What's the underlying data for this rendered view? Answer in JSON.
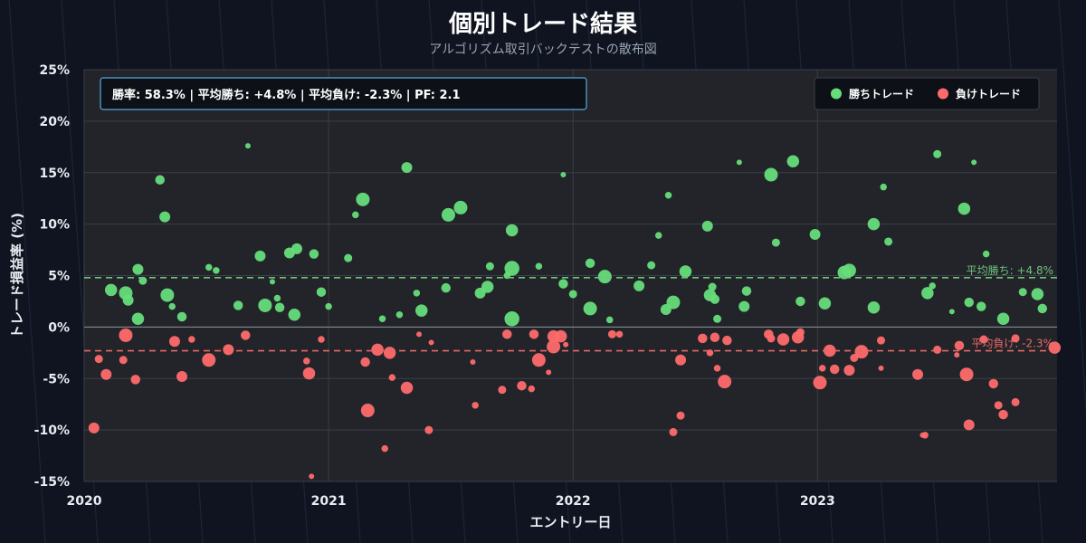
{
  "header": {
    "title": "個別トレード結果",
    "subtitle": "アルゴリズム取引バックテストの散布図"
  },
  "stats_box": "勝率: 58.3%  |  平均勝ち: +4.8%  |  平均負け: -2.3%  |  PF: 2.1",
  "colors": {
    "win": "#66dd7a",
    "loss": "#ff6b6b",
    "plot_bg": "#222429",
    "page_bg": "#0f1420",
    "stats_border": "#5aa8e0"
  },
  "chart_data": {
    "type": "scatter",
    "title": "個別トレード結果",
    "subtitle": "アルゴリズム取引バックテストの散布図",
    "xlabel": "エントリー日",
    "ylabel": "トレード損益率 (%)",
    "xlim": [
      2020.0,
      2023.98
    ],
    "ylim": [
      -15,
      25
    ],
    "x_ticks": [
      2020,
      2021,
      2022,
      2023
    ],
    "x_tick_labels": [
      "2020",
      "2021",
      "2022",
      "2023"
    ],
    "y_ticks": [
      -15,
      -10,
      -5,
      0,
      5,
      10,
      15,
      20,
      25
    ],
    "y_tick_labels": [
      "-15%",
      "-10%",
      "-5%",
      "0%",
      "5%",
      "10%",
      "15%",
      "20%",
      "25%"
    ],
    "grid": true,
    "legend_position": "top-right",
    "reference_lines": [
      {
        "label": "平均勝ち: +4.8%",
        "y": 4.8,
        "series": "wins"
      },
      {
        "label": "平均負け: -2.3%",
        "y": -2.3,
        "series": "losses"
      }
    ],
    "series": [
      {
        "name": "勝ちトレード",
        "color": "#66dd7a",
        "points": [
          [
            2020.11,
            3.6,
            9
          ],
          [
            2020.17,
            3.3,
            10
          ],
          [
            2020.18,
            2.6,
            8
          ],
          [
            2020.22,
            5.6,
            8
          ],
          [
            2020.22,
            0.8,
            9
          ],
          [
            2020.24,
            4.5,
            6
          ],
          [
            2020.31,
            14.3,
            7
          ],
          [
            2020.33,
            10.7,
            8
          ],
          [
            2020.34,
            3.1,
            10
          ],
          [
            2020.36,
            2.0,
            5
          ],
          [
            2020.4,
            1.0,
            7
          ],
          [
            2020.51,
            5.8,
            5
          ],
          [
            2020.54,
            5.5,
            5
          ],
          [
            2020.63,
            2.1,
            7
          ],
          [
            2020.67,
            17.6,
            4
          ],
          [
            2020.72,
            6.9,
            8
          ],
          [
            2020.74,
            2.1,
            10
          ],
          [
            2020.77,
            4.4,
            4
          ],
          [
            2020.79,
            2.8,
            5
          ],
          [
            2020.8,
            1.9,
            7
          ],
          [
            2020.84,
            7.2,
            8
          ],
          [
            2020.87,
            7.6,
            8
          ],
          [
            2020.86,
            1.2,
            9
          ],
          [
            2020.94,
            7.1,
            7
          ],
          [
            2020.97,
            3.4,
            7
          ],
          [
            2021.0,
            2.0,
            5
          ],
          [
            2021.08,
            6.7,
            6
          ],
          [
            2021.11,
            10.9,
            5
          ],
          [
            2021.14,
            12.4,
            10
          ],
          [
            2021.22,
            0.8,
            5
          ],
          [
            2021.29,
            1.2,
            5
          ],
          [
            2021.32,
            15.5,
            8
          ],
          [
            2021.36,
            3.3,
            5
          ],
          [
            2021.38,
            1.6,
            9
          ],
          [
            2021.49,
            10.9,
            10
          ],
          [
            2021.54,
            11.6,
            10
          ],
          [
            2021.48,
            3.8,
            7
          ],
          [
            2021.62,
            3.3,
            8
          ],
          [
            2021.65,
            3.9,
            9
          ],
          [
            2021.66,
            5.9,
            6
          ],
          [
            2021.73,
            5.0,
            5
          ],
          [
            2021.75,
            9.4,
            9
          ],
          [
            2021.75,
            5.7,
            11
          ],
          [
            2021.75,
            0.8,
            11
          ],
          [
            2021.86,
            5.9,
            5
          ],
          [
            2021.96,
            14.8,
            4
          ],
          [
            2021.96,
            4.2,
            7
          ],
          [
            2022.0,
            3.2,
            6
          ],
          [
            2022.07,
            6.2,
            7
          ],
          [
            2022.07,
            1.8,
            10
          ],
          [
            2022.13,
            4.9,
            10
          ],
          [
            2022.15,
            0.7,
            5
          ],
          [
            2022.27,
            4.0,
            8
          ],
          [
            2022.32,
            6.0,
            6
          ],
          [
            2022.35,
            8.9,
            5
          ],
          [
            2022.38,
            1.7,
            8
          ],
          [
            2022.39,
            12.8,
            5
          ],
          [
            2022.41,
            2.4,
            10
          ],
          [
            2022.46,
            5.4,
            9
          ],
          [
            2022.55,
            9.8,
            8
          ],
          [
            2022.56,
            3.1,
            9
          ],
          [
            2022.57,
            3.9,
            6
          ],
          [
            2022.58,
            2.7,
            7
          ],
          [
            2022.59,
            0.8,
            6
          ],
          [
            2022.68,
            16.0,
            4
          ],
          [
            2022.7,
            2.0,
            8
          ],
          [
            2022.71,
            3.5,
            7
          ],
          [
            2022.81,
            14.8,
            10
          ],
          [
            2022.83,
            8.2,
            6
          ],
          [
            2022.9,
            16.1,
            9
          ],
          [
            2022.93,
            2.5,
            7
          ],
          [
            2022.99,
            9.0,
            8
          ],
          [
            2023.03,
            2.3,
            9
          ],
          [
            2023.11,
            5.3,
            10
          ],
          [
            2023.13,
            5.5,
            10
          ],
          [
            2023.23,
            10.0,
            9
          ],
          [
            2023.23,
            1.9,
            9
          ],
          [
            2023.27,
            13.6,
            5
          ],
          [
            2023.29,
            8.3,
            6
          ],
          [
            2023.45,
            3.3,
            9
          ],
          [
            2023.47,
            4.0,
            5
          ],
          [
            2023.49,
            16.8,
            6
          ],
          [
            2023.55,
            1.5,
            4
          ],
          [
            2023.6,
            11.5,
            9
          ],
          [
            2023.62,
            2.4,
            7
          ],
          [
            2023.64,
            16.0,
            4
          ],
          [
            2023.67,
            2.0,
            7
          ],
          [
            2023.69,
            7.1,
            5
          ],
          [
            2023.76,
            0.8,
            9
          ],
          [
            2023.84,
            3.4,
            6
          ],
          [
            2023.9,
            3.2,
            9
          ],
          [
            2023.92,
            1.8,
            7
          ]
        ]
      },
      {
        "name": "負けトレード",
        "color": "#ff6b6b",
        "points": [
          [
            2020.04,
            -9.8,
            8
          ],
          [
            2020.06,
            -3.1,
            6
          ],
          [
            2020.09,
            -4.6,
            8
          ],
          [
            2020.16,
            -3.2,
            6
          ],
          [
            2020.17,
            -0.8,
            10
          ],
          [
            2020.21,
            -5.1,
            7
          ],
          [
            2020.37,
            -1.4,
            8
          ],
          [
            2020.4,
            -4.8,
            8
          ],
          [
            2020.44,
            -1.2,
            5
          ],
          [
            2020.51,
            -3.2,
            10
          ],
          [
            2020.59,
            -2.2,
            8
          ],
          [
            2020.66,
            -0.8,
            7
          ],
          [
            2020.91,
            -3.3,
            5
          ],
          [
            2020.92,
            -4.5,
            9
          ],
          [
            2020.93,
            -14.5,
            4
          ],
          [
            2020.97,
            -1.2,
            5
          ],
          [
            2021.15,
            -3.4,
            7
          ],
          [
            2021.16,
            -8.1,
            10
          ],
          [
            2021.2,
            -2.2,
            9
          ],
          [
            2021.23,
            -11.8,
            5
          ],
          [
            2021.26,
            -4.9,
            5
          ],
          [
            2021.25,
            -2.5,
            9
          ],
          [
            2021.32,
            -5.9,
            9
          ],
          [
            2021.37,
            -0.7,
            4
          ],
          [
            2021.41,
            -10.0,
            6
          ],
          [
            2021.42,
            -1.5,
            4
          ],
          [
            2021.59,
            -3.4,
            4
          ],
          [
            2021.6,
            -7.6,
            5
          ],
          [
            2021.73,
            -0.7,
            7
          ],
          [
            2021.71,
            -6.1,
            6
          ],
          [
            2021.79,
            -5.7,
            7
          ],
          [
            2021.83,
            -6.0,
            5
          ],
          [
            2021.86,
            -3.2,
            10
          ],
          [
            2021.84,
            -0.7,
            7
          ],
          [
            2021.95,
            -0.9,
            9
          ],
          [
            2021.9,
            -4.4,
            4
          ],
          [
            2021.92,
            -1.9,
            10
          ],
          [
            2021.92,
            -0.9,
            9
          ],
          [
            2021.97,
            -1.7,
            4
          ],
          [
            2022.16,
            -0.7,
            6
          ],
          [
            2022.19,
            -0.7,
            5
          ],
          [
            2022.41,
            -10.2,
            6
          ],
          [
            2022.44,
            -8.6,
            6
          ],
          [
            2022.44,
            -3.2,
            8
          ],
          [
            2022.53,
            -1.1,
            7
          ],
          [
            2022.56,
            -2.5,
            5
          ],
          [
            2022.59,
            -4.0,
            5
          ],
          [
            2022.58,
            -1.0,
            7
          ],
          [
            2022.62,
            -5.3,
            10
          ],
          [
            2022.63,
            -1.3,
            7
          ],
          [
            2022.8,
            -0.7,
            7
          ],
          [
            2022.81,
            -1.1,
            6
          ],
          [
            2022.86,
            -1.2,
            9
          ],
          [
            2022.92,
            -1.0,
            9
          ],
          [
            2022.93,
            -0.5,
            6
          ],
          [
            2023.01,
            -5.4,
            10
          ],
          [
            2023.02,
            -4.0,
            5
          ],
          [
            2023.05,
            -2.3,
            9
          ],
          [
            2023.07,
            -4.1,
            7
          ],
          [
            2023.13,
            -4.2,
            8
          ],
          [
            2023.15,
            -3.0,
            6
          ],
          [
            2023.18,
            -2.4,
            10
          ],
          [
            2023.26,
            -1.3,
            6
          ],
          [
            2023.26,
            -4.0,
            4
          ],
          [
            2023.41,
            -4.6,
            8
          ],
          [
            2023.43,
            -10.5,
            4
          ],
          [
            2023.44,
            -10.5,
            5
          ],
          [
            2023.49,
            -2.2,
            6
          ],
          [
            2023.57,
            -2.7,
            4
          ],
          [
            2023.58,
            -1.8,
            7
          ],
          [
            2023.61,
            -4.6,
            10
          ],
          [
            2023.62,
            -9.5,
            8
          ],
          [
            2023.68,
            -1.2,
            6
          ],
          [
            2023.72,
            -5.5,
            7
          ],
          [
            2023.74,
            -7.6,
            6
          ],
          [
            2023.76,
            -8.5,
            7
          ],
          [
            2023.81,
            -7.3,
            6
          ],
          [
            2023.81,
            -1.1,
            6
          ],
          [
            2023.97,
            -2.0,
            9
          ]
        ]
      }
    ]
  }
}
